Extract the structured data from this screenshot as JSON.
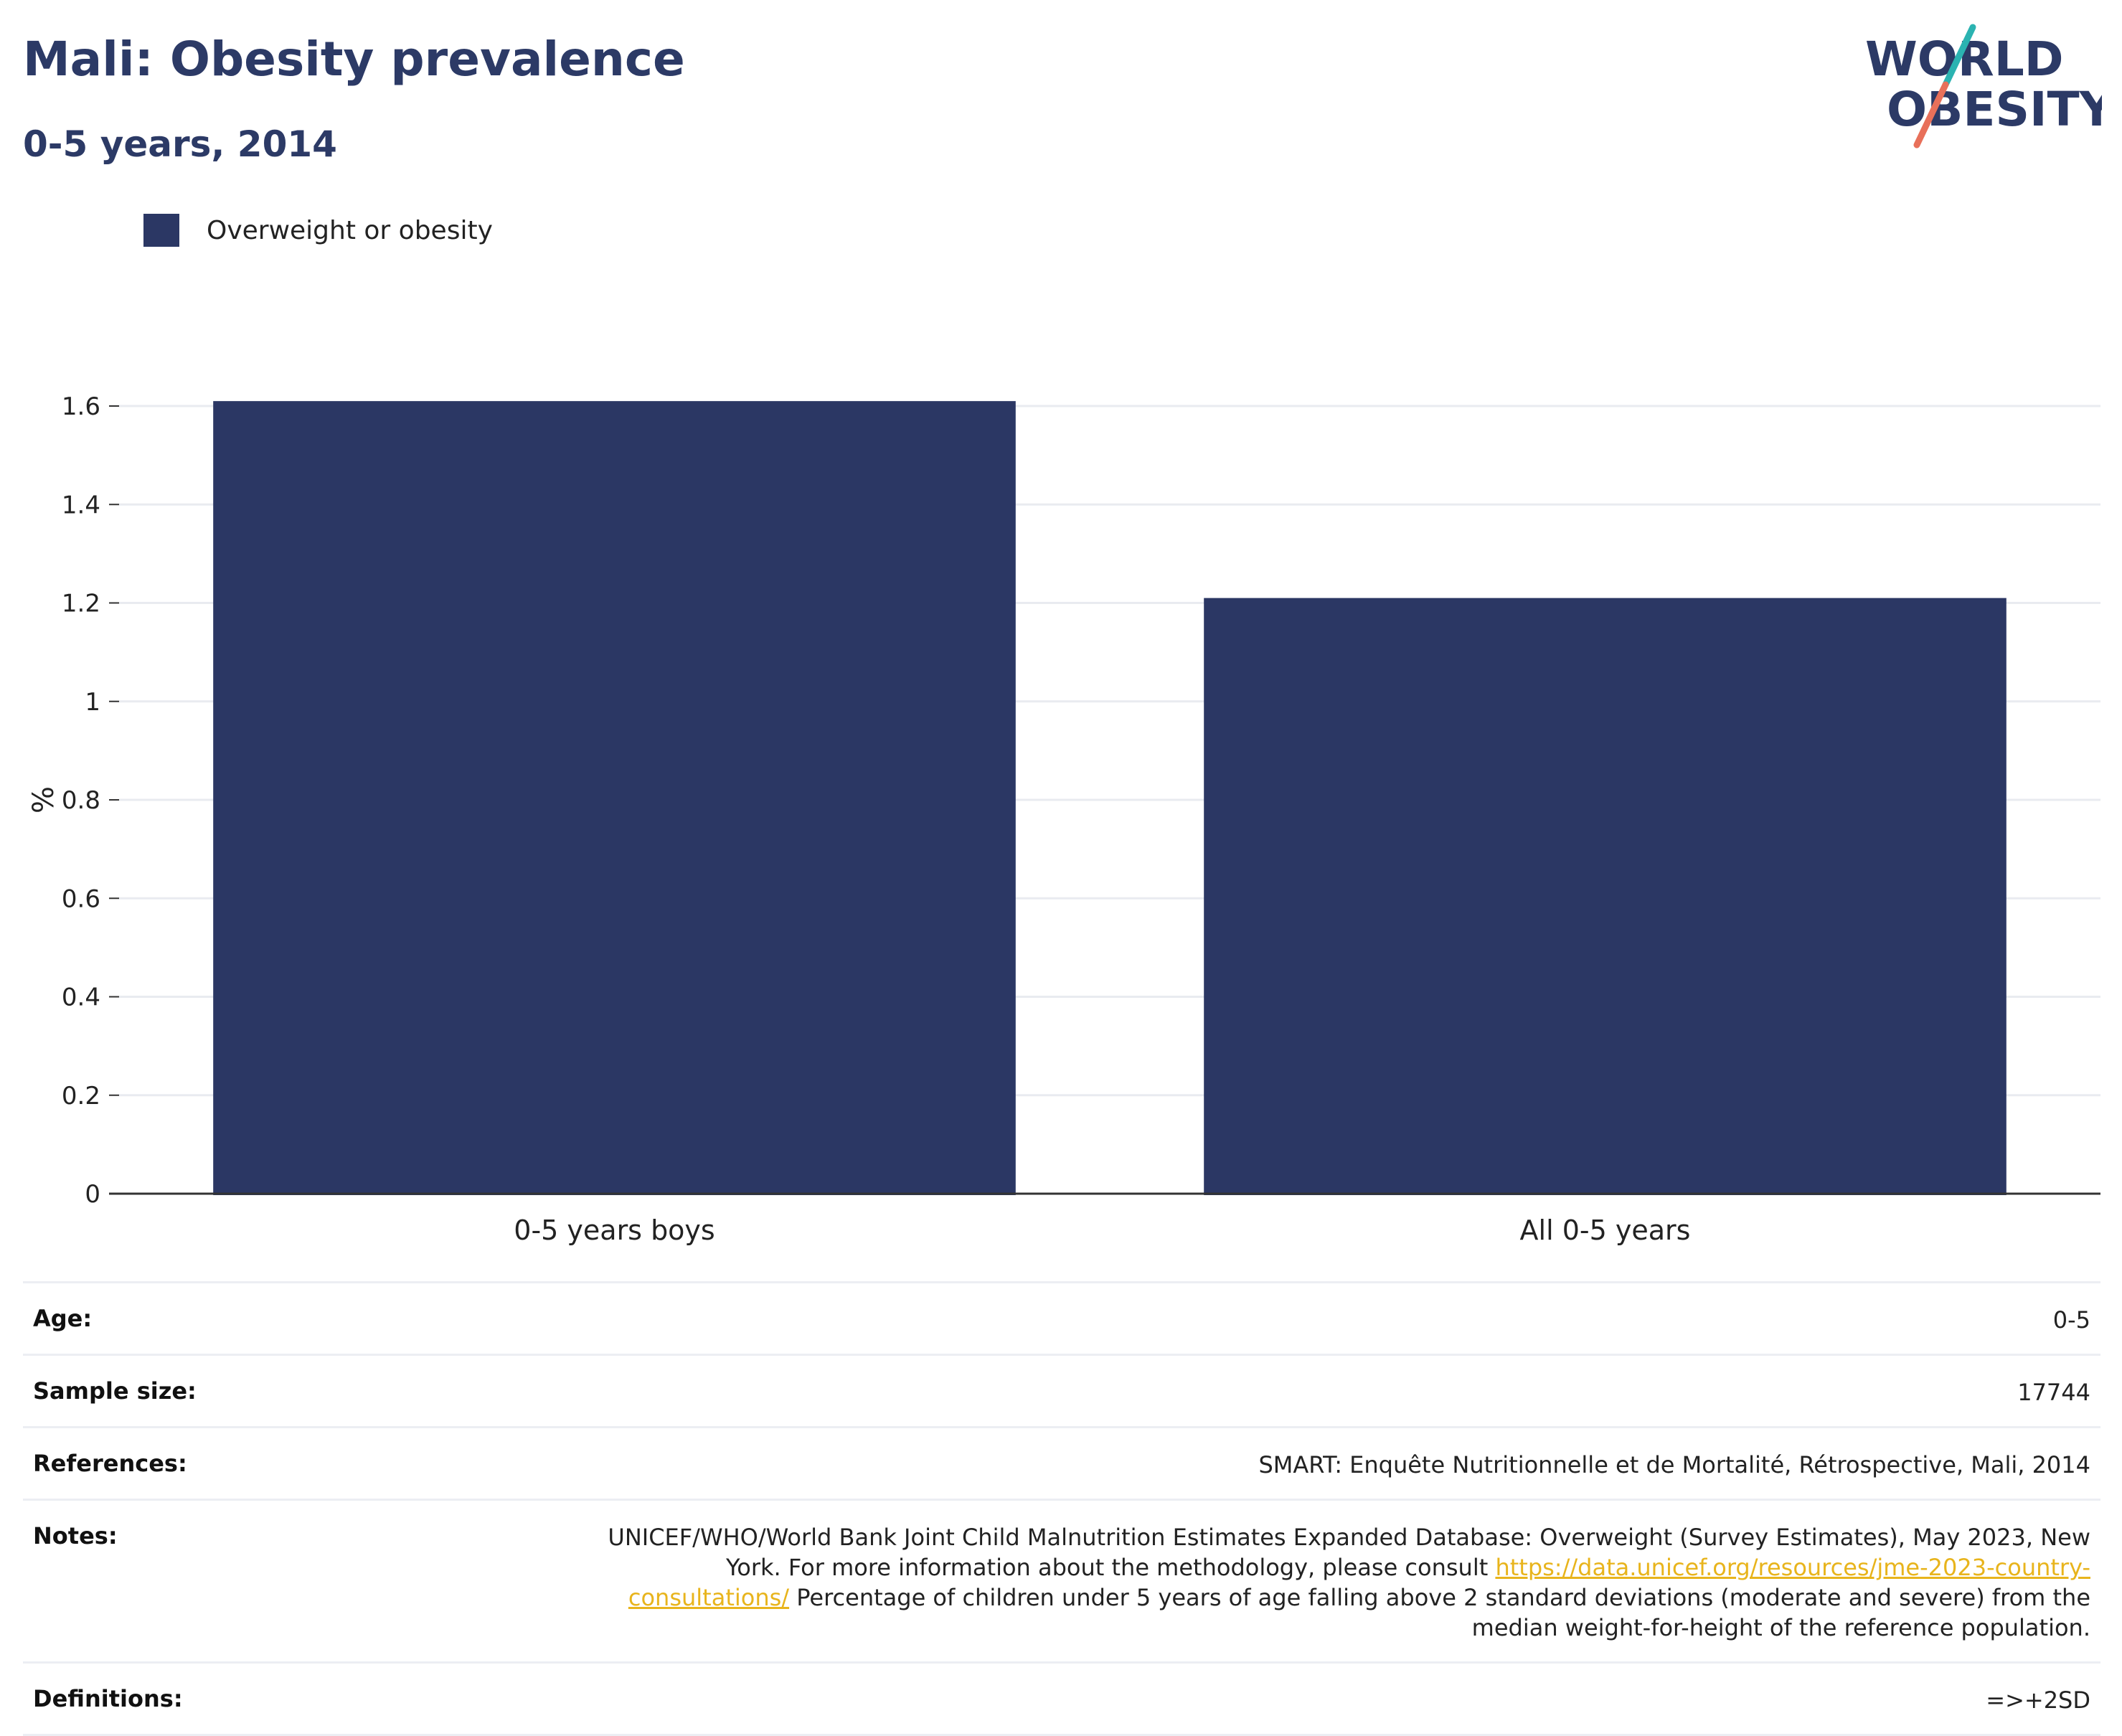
{
  "header": {
    "title": "Mali: Obesity prevalence",
    "subtitle": "0-5 years, 2014"
  },
  "logo": {
    "line1": "WORLD",
    "line2": "OBESITY",
    "colors": {
      "text": "#2c3a66",
      "slash_top": "#2bb3b1",
      "slash_bottom": "#e8705a"
    }
  },
  "chart_data": {
    "type": "bar",
    "categories": [
      "0-5 years boys",
      "All 0-5 years"
    ],
    "series": [
      {
        "name": "Overweight or obesity",
        "values": [
          1.61,
          1.21
        ],
        "color": "#2b3764"
      }
    ],
    "ylabel": "%",
    "ylim": [
      0,
      1.6
    ],
    "yticks": [
      0,
      0.2,
      0.4,
      0.6,
      0.8,
      1,
      1.2,
      1.4,
      1.6
    ],
    "ytick_labels": [
      "0",
      "0.2",
      "0.4",
      "0.6",
      "0.8",
      "1",
      "1.2",
      "1.4",
      "1.6"
    ],
    "grid": true,
    "legend_placement": "top-left"
  },
  "info": {
    "age": {
      "label": "Age:",
      "value": "0-5"
    },
    "sample": {
      "label": "Sample size:",
      "value": "17744"
    },
    "references": {
      "label": "References:",
      "value": "SMART: Enquête Nutritionnelle et de Mortalité, Rétrospective, Mali, 2014"
    },
    "notes": {
      "label": "Notes:",
      "text1": "UNICEF/WHO/World Bank Joint Child Malnutrition Estimates Expanded Database: Overweight (Survey Estimates), May 2023, New York. For more information about the methodology, please consult",
      "link": "https://data.unicef.org/resources/jme-2023-country-consultations/",
      "text2": "Percentage of children under 5 years of age falling above 2 standard deviations (moderate and severe) from the median weight-for-height of the reference population."
    },
    "definitions": {
      "label": "Definitions:",
      "value": "=>+2SD"
    }
  }
}
